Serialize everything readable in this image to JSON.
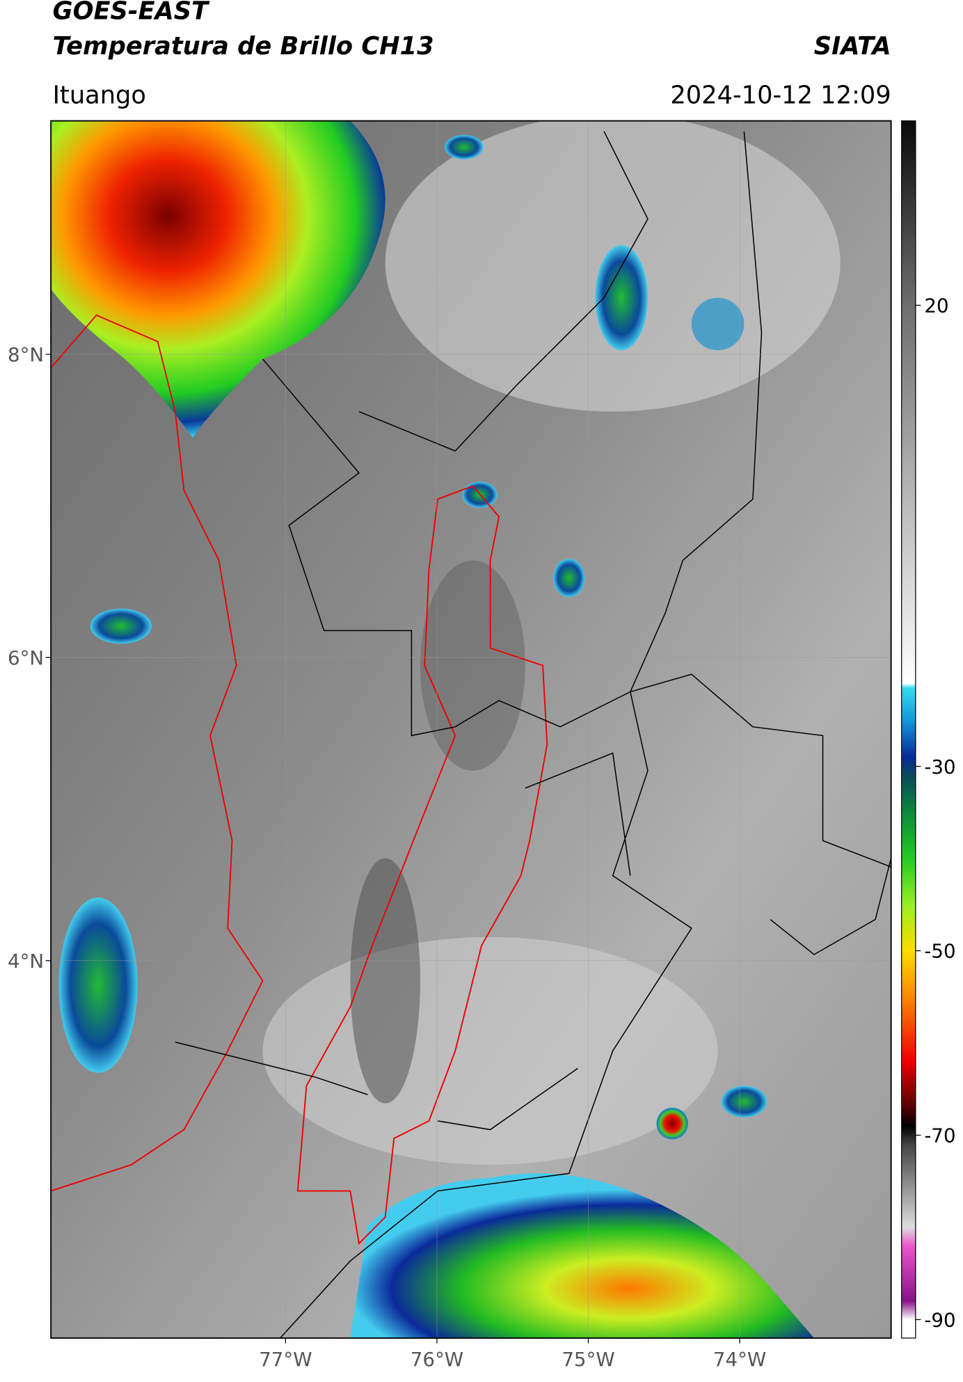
{
  "header": {
    "title": "GOES-EAST",
    "subtitle": "Temperatura de Brillo CH13",
    "source": "SIATA",
    "location": "Ituango",
    "datetime": "2024-10-12 12:09"
  },
  "map": {
    "xlim": [
      -78.55,
      -73.0
    ],
    "ylim": [
      1.51,
      9.54
    ],
    "xticks": [
      {
        "value": -77,
        "label": "77°W"
      },
      {
        "value": -76,
        "label": "76°W"
      },
      {
        "value": -75,
        "label": "75°W"
      },
      {
        "value": -74,
        "label": "74°W"
      }
    ],
    "yticks": [
      {
        "value": 8,
        "label": "8°N"
      },
      {
        "value": 6,
        "label": "6°N"
      },
      {
        "value": 4,
        "label": "4°N"
      }
    ],
    "grid": true
  },
  "colorbar": {
    "lim": [
      -92,
      40
    ],
    "ticks": [
      20,
      -30,
      -50,
      -70,
      -90
    ],
    "colormap": [
      [
        40,
        "#0a0a0a"
      ],
      [
        20,
        "#6e6e6e"
      ],
      [
        -21,
        "#ffffff"
      ],
      [
        -21.5,
        "#33ddee"
      ],
      [
        -25,
        "#1199dd"
      ],
      [
        -29,
        "#0a2a9a"
      ],
      [
        -31,
        "#0a4a5a"
      ],
      [
        -35,
        "#0a8a3a"
      ],
      [
        -40,
        "#22cc22"
      ],
      [
        -45,
        "#99ee22"
      ],
      [
        -50,
        "#ffdd00"
      ],
      [
        -55,
        "#ff8800"
      ],
      [
        -62,
        "#ee0000"
      ],
      [
        -67,
        "#550000"
      ],
      [
        -69,
        "#000000"
      ],
      [
        -71,
        "#444444"
      ],
      [
        -80,
        "#dddddd"
      ],
      [
        -82,
        "#ee55cc"
      ],
      [
        -88,
        "#881188"
      ],
      [
        -90,
        "#ffffff"
      ],
      [
        -92,
        "#ffffff"
      ]
    ]
  }
}
